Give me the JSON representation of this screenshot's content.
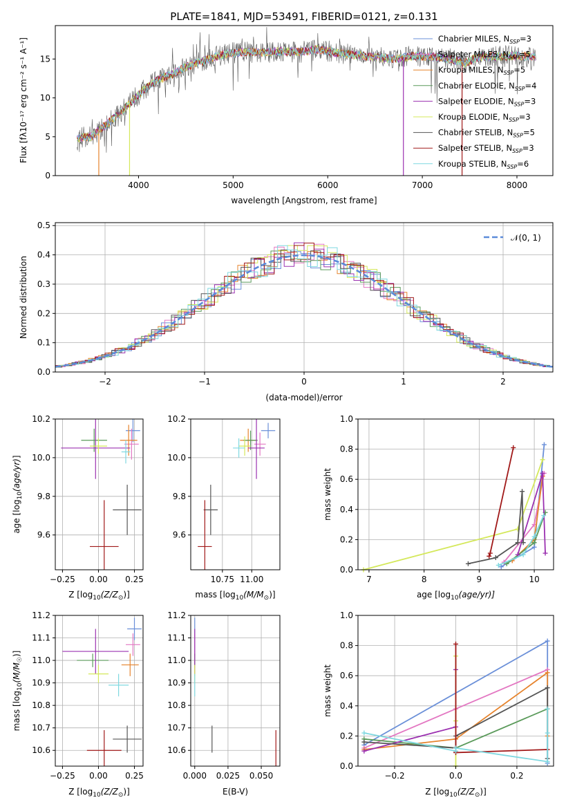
{
  "figure": {
    "title": "PLATE=1841, MJD=53491, FIBERID=0121, z=0.131"
  },
  "models": [
    {
      "name": "Chabrier MILES, N",
      "nssp": "=3",
      "color": "#6a8fd8"
    },
    {
      "name": "Salpeter MILES, N",
      "nssp": "=5",
      "color": "#e377c2"
    },
    {
      "name": "Kroupa MILES, N",
      "nssp": "=5",
      "color": "#e6832c"
    },
    {
      "name": "Chabrier ELODIE, N",
      "nssp": "=4",
      "color": "#5a9a5a"
    },
    {
      "name": "Salpeter ELODIE, N",
      "nssp": "=3",
      "color": "#9b30b0"
    },
    {
      "name": "Kroupa ELODIE, N",
      "nssp": "=3",
      "color": "#d4e85a"
    },
    {
      "name": "Chabrier STELIB, N",
      "nssp": "=5",
      "color": "#555555"
    },
    {
      "name": "Salpeter STELIB, N",
      "nssp": "=3",
      "color": "#a01818"
    },
    {
      "name": "Kroupa STELIB, N",
      "nssp": "=6",
      "color": "#7fd8e0"
    }
  ],
  "chart_data": [
    {
      "id": "spectrum",
      "type": "line",
      "xlabel": "wavelength [Angstrom, rest frame]",
      "ylabel": "Flux [fλ10⁻¹⁷ erg cm⁻² s⁻¹ A⁻¹]",
      "xlim": [
        3120,
        8380
      ],
      "ylim": [
        0,
        19.3
      ],
      "xticks": [
        4000,
        5000,
        6000,
        7000,
        8000
      ],
      "yticks": [
        0,
        5,
        10,
        15
      ],
      "grid": false,
      "legend": "top-right",
      "continuum": {
        "x": [
          3350,
          3500,
          3650,
          3800,
          3950,
          4050,
          4200,
          4350,
          4500,
          4700,
          4900,
          5100,
          5300,
          5500,
          5700,
          5900,
          6100,
          6300,
          6500,
          6700,
          6900,
          7100,
          7300,
          7450,
          7600,
          7800,
          8000,
          8200
        ],
        "y": [
          4.8,
          5.0,
          6.5,
          8.0,
          9.8,
          11.0,
          12.3,
          13.0,
          14.0,
          14.8,
          15.6,
          15.9,
          15.8,
          16.0,
          15.9,
          16.2,
          15.8,
          15.5,
          15.2,
          15.0,
          15.4,
          15.3,
          15.0,
          14.5,
          15.3,
          15.3,
          15.4,
          15.3
        ]
      }
    },
    {
      "id": "residuals",
      "type": "step",
      "xlabel": "(data-model)/error",
      "ylabel": "Normed distribution",
      "xlim": [
        -2.5,
        2.5
      ],
      "ylim": [
        0,
        0.51
      ],
      "xticks": [
        -2,
        -1,
        0,
        1,
        2
      ],
      "yticks": [
        0.0,
        0.1,
        0.2,
        0.3,
        0.4,
        0.5
      ],
      "grid": true,
      "legend": "top-right",
      "reference_label": "𝒩(0, 1)",
      "reference_color": "#5b8bd9"
    },
    {
      "id": "age-vs-Z",
      "type": "errorbar",
      "xlabel_plain": "Z [log",
      "xlabel_sub": "10",
      "xlabel_rest": "(Z/Z",
      "xlabel_end": ")]",
      "ylabel": "age  [log10(age/yr)]",
      "xlim": [
        -0.3,
        0.31
      ],
      "ylim": [
        9.42,
        10.2
      ],
      "xticks": [
        -0.25,
        0.0,
        0.25
      ],
      "xtick_labels": [
        "−0.25",
        "0.00",
        "0.25"
      ],
      "yticks": [
        9.6,
        9.8,
        10.0,
        10.2
      ],
      "ytick_labels": [
        "9.6",
        "9.8",
        "10.0",
        "10.2"
      ],
      "grid": true,
      "points": [
        {
          "model": 0,
          "x": 0.24,
          "xerr": 0.05,
          "y": 10.14,
          "yerr": 0.06
        },
        {
          "model": 1,
          "x": 0.23,
          "xerr": 0.05,
          "y": 10.07,
          "yerr": 0.08
        },
        {
          "model": 2,
          "x": 0.21,
          "xerr": 0.06,
          "y": 10.09,
          "yerr": 0.08
        },
        {
          "model": 3,
          "x": -0.03,
          "xerr": 0.09,
          "y": 10.09,
          "yerr": 0.06
        },
        {
          "model": 4,
          "x": -0.02,
          "xerr": 0.24,
          "y": 10.05,
          "yerr": 0.16
        },
        {
          "model": 5,
          "x": 0.0,
          "xerr": 0.06,
          "y": 10.06,
          "yerr": 0.04
        },
        {
          "model": 6,
          "x": 0.2,
          "xerr": 0.1,
          "y": 9.73,
          "yerr": 0.13
        },
        {
          "model": 7,
          "x": 0.04,
          "xerr": 0.1,
          "y": 9.54,
          "yerr": 0.24
        },
        {
          "model": 8,
          "x": 0.19,
          "xerr": 0.03,
          "y": 10.03,
          "yerr": 0.06
        }
      ]
    },
    {
      "id": "age-vs-mass",
      "type": "errorbar",
      "xlabel_plain": "mass [log",
      "xlabel_sub": "10",
      "xlabel_rest": "(M/M",
      "xlabel_end": ")]",
      "xlim": [
        10.48,
        11.24
      ],
      "ylim": [
        9.42,
        10.2
      ],
      "xticks": [
        10.75,
        11.0
      ],
      "xtick_labels": [
        "10.75",
        "11.00"
      ],
      "yticks": [
        9.6,
        9.8,
        10.0,
        10.2
      ],
      "ytick_labels": [
        "9.6",
        "9.8",
        "10.0",
        "10.2"
      ],
      "grid": true,
      "points": [
        {
          "model": 0,
          "x": 11.14,
          "xerr": 0.06,
          "y": 10.14,
          "yerr": 0.04
        },
        {
          "model": 1,
          "x": 11.07,
          "xerr": 0.05,
          "y": 10.07,
          "yerr": 0.06
        },
        {
          "model": 2,
          "x": 10.97,
          "xerr": 0.07,
          "y": 10.09,
          "yerr": 0.06
        },
        {
          "model": 3,
          "x": 10.99,
          "xerr": 0.06,
          "y": 10.09,
          "yerr": 0.05
        },
        {
          "model": 4,
          "x": 11.04,
          "xerr": 0.07,
          "y": 10.05,
          "yerr": 0.16
        },
        {
          "model": 5,
          "x": 10.94,
          "xerr": 0.05,
          "y": 10.06,
          "yerr": 0.05
        },
        {
          "model": 6,
          "x": 10.65,
          "xerr": 0.06,
          "y": 9.73,
          "yerr": 0.13
        },
        {
          "model": 7,
          "x": 10.6,
          "xerr": 0.06,
          "y": 9.54,
          "yerr": 0.24
        },
        {
          "model": 8,
          "x": 10.89,
          "xerr": 0.05,
          "y": 10.05,
          "yerr": 0.05
        }
      ]
    },
    {
      "id": "mass-weight-vs-age",
      "type": "line",
      "xlabel_plain": "age  [log",
      "xlabel_sub": "10",
      "xlabel_rest": "(age/yr)]",
      "ylabel": "mass weight",
      "xlim": [
        6.8,
        10.35
      ],
      "ylim": [
        0,
        1.0
      ],
      "xticks": [
        7,
        8,
        9,
        10
      ],
      "xtick_labels": [
        "7",
        "8",
        "9",
        "10"
      ],
      "yticks": [
        0.0,
        0.2,
        0.4,
        0.6,
        0.8,
        1.0
      ],
      "ytick_labels": [
        "0.0",
        "0.2",
        "0.4",
        "0.6",
        "0.8",
        "1.0"
      ],
      "grid": true,
      "series": [
        {
          "model": 0,
          "x": [
            9.4,
            10.0,
            10.18
          ],
          "y": [
            0.02,
            0.15,
            0.83
          ]
        },
        {
          "model": 1,
          "x": [
            9.45,
            10.0,
            10.18
          ],
          "y": [
            0.05,
            0.3,
            0.64
          ]
        },
        {
          "model": 2,
          "x": [
            9.6,
            10.0,
            10.15
          ],
          "y": [
            0.06,
            0.2,
            0.62
          ]
        },
        {
          "model": 3,
          "x": [
            9.5,
            10.0,
            10.2
          ],
          "y": [
            0.04,
            0.18,
            0.38
          ]
        },
        {
          "model": 4,
          "x": [
            9.7,
            10.15,
            10.2
          ],
          "y": [
            0.1,
            0.64,
            0.11
          ]
        },
        {
          "model": 5,
          "x": [
            6.9,
            9.7,
            10.15
          ],
          "y": [
            0.0,
            0.27,
            0.73
          ]
        },
        {
          "model": 6,
          "x": [
            8.8,
            9.3,
            9.7,
            9.78,
            9.8
          ],
          "y": [
            0.04,
            0.08,
            0.18,
            0.52,
            0.18
          ]
        },
        {
          "model": 7,
          "x": [
            9.18,
            9.2,
            9.62
          ],
          "y": [
            0.09,
            0.11,
            0.81
          ]
        },
        {
          "model": 8,
          "x": [
            9.35,
            9.8,
            10.0,
            10.17
          ],
          "y": [
            0.03,
            0.1,
            0.22,
            0.36
          ]
        }
      ]
    },
    {
      "id": "mass-vs-Z",
      "type": "errorbar",
      "xlabel_plain": "Z [log",
      "xlabel_sub": "10",
      "xlabel_rest": "(Z/Z",
      "xlabel_end": ")]",
      "ylabel": "mass [log10(M/M☉)]",
      "xlim": [
        -0.3,
        0.31
      ],
      "ylim": [
        10.53,
        11.2
      ],
      "xticks": [
        -0.25,
        0.0,
        0.25
      ],
      "xtick_labels": [
        "−0.25",
        "0.00",
        "0.25"
      ],
      "yticks": [
        10.6,
        10.7,
        10.8,
        10.9,
        11.0,
        11.1,
        11.2
      ],
      "ytick_labels": [
        "10.6",
        "10.7",
        "10.8",
        "10.9",
        "11.0",
        "11.1",
        "11.2"
      ],
      "grid": true,
      "points": [
        {
          "model": 0,
          "x": 0.25,
          "xerr": 0.05,
          "y": 11.14,
          "yerr": 0.05
        },
        {
          "model": 1,
          "x": 0.24,
          "xerr": 0.05,
          "y": 11.07,
          "yerr": 0.05
        },
        {
          "model": 2,
          "x": 0.22,
          "xerr": 0.06,
          "y": 10.98,
          "yerr": 0.05
        },
        {
          "model": 3,
          "x": -0.04,
          "xerr": 0.11,
          "y": 11.0,
          "yerr": 0.03
        },
        {
          "model": 4,
          "x": -0.02,
          "xerr": 0.23,
          "y": 11.04,
          "yerr": 0.1
        },
        {
          "model": 5,
          "x": 0.0,
          "xerr": 0.07,
          "y": 10.94,
          "yerr": 0.04
        },
        {
          "model": 6,
          "x": 0.2,
          "xerr": 0.1,
          "y": 10.65,
          "yerr": 0.06
        },
        {
          "model": 7,
          "x": 0.04,
          "xerr": 0.12,
          "y": 10.6,
          "yerr": 0.09
        },
        {
          "model": 8,
          "x": 0.14,
          "xerr": 0.07,
          "y": 10.89,
          "yerr": 0.05
        }
      ]
    },
    {
      "id": "mass-vs-ebv",
      "type": "errorbar",
      "xlabel": "E(B-V)",
      "xlim": [
        -0.003,
        0.064
      ],
      "ylim": [
        10.53,
        11.2
      ],
      "xticks": [
        0.0,
        0.025,
        0.05
      ],
      "xtick_labels": [
        "0.000",
        "0.025",
        "0.050"
      ],
      "yticks": [
        10.6,
        10.7,
        10.8,
        10.9,
        11.0,
        11.1,
        11.2
      ],
      "ytick_labels": [
        "10.6",
        "10.7",
        "10.8",
        "10.9",
        "11.0",
        "11.1",
        "11.2"
      ],
      "grid": true,
      "points": [
        {
          "model": 0,
          "x": 0.0,
          "xerr": 0,
          "y": 11.14,
          "yerr": 0.05
        },
        {
          "model": 1,
          "x": 0.0,
          "xerr": 0,
          "y": 11.07,
          "yerr": 0.05
        },
        {
          "model": 2,
          "x": 0.0,
          "xerr": 0,
          "y": 10.98,
          "yerr": 0.05
        },
        {
          "model": 3,
          "x": 0.0,
          "xerr": 0,
          "y": 11.0,
          "yerr": 0.03
        },
        {
          "model": 4,
          "x": 0.0,
          "xerr": 0,
          "y": 11.04,
          "yerr": 0.1
        },
        {
          "model": 5,
          "x": 0.0,
          "xerr": 0,
          "y": 10.94,
          "yerr": 0.04
        },
        {
          "model": 6,
          "x": 0.013,
          "xerr": 0,
          "y": 10.65,
          "yerr": 0.06
        },
        {
          "model": 7,
          "x": 0.061,
          "xerr": 0,
          "y": 10.6,
          "yerr": 0.09
        },
        {
          "model": 8,
          "x": 0.0,
          "xerr": 0,
          "y": 10.89,
          "yerr": 0.05
        }
      ]
    },
    {
      "id": "mass-weight-vs-Z",
      "type": "line",
      "xlabel_plain": "Z [log",
      "xlabel_sub": "10",
      "xlabel_rest": "(Z/Z",
      "xlabel_end": ")]",
      "ylabel": "mass weight",
      "xlim": [
        -0.32,
        0.32
      ],
      "ylim": [
        0,
        1.0
      ],
      "xticks": [
        -0.2,
        0.0,
        0.2
      ],
      "xtick_labels": [
        "−0.2",
        "0.0",
        "0.2"
      ],
      "yticks": [
        0.0,
        0.2,
        0.4,
        0.6,
        0.8,
        1.0
      ],
      "ytick_labels": [
        "0.0",
        "0.2",
        "0.4",
        "0.6",
        "0.8",
        "1.0"
      ],
      "grid": true,
      "series": [
        {
          "model": 0,
          "x": [
            -0.3,
            0.3,
            0.3
          ],
          "y": [
            0.14,
            0.83,
            0.02
          ]
        },
        {
          "model": 1,
          "x": [
            -0.3,
            0.0,
            0.3
          ],
          "y": [
            0.12,
            0.38,
            0.64
          ]
        },
        {
          "model": 2,
          "x": [
            -0.3,
            0.0,
            0.3,
            0.3
          ],
          "y": [
            0.11,
            0.18,
            0.62,
            0.2
          ]
        },
        {
          "model": 3,
          "x": [
            -0.3,
            0.0,
            0.3
          ],
          "y": [
            0.18,
            0.12,
            0.38
          ]
        },
        {
          "model": 4,
          "x": [
            -0.3,
            0.0,
            0.0
          ],
          "y": [
            0.1,
            0.26,
            0.64
          ]
        },
        {
          "model": 5,
          "x": [
            0.0,
            0.0,
            0.0
          ],
          "y": [
            0.73,
            0.3,
            0.0
          ]
        },
        {
          "model": 6,
          "x": [
            -0.3,
            0.0,
            0.0,
            0.3,
            0.3
          ],
          "y": [
            0.16,
            0.12,
            0.2,
            0.52,
            0.05
          ]
        },
        {
          "model": 7,
          "x": [
            0.0,
            0.0,
            0.0,
            0.3
          ],
          "y": [
            0.81,
            0.1,
            0.09,
            0.11
          ]
        },
        {
          "model": 8,
          "x": [
            -0.3,
            0.0,
            0.0,
            0.3,
            0.3,
            0.3
          ],
          "y": [
            0.22,
            0.1,
            0.12,
            0.03,
            0.22,
            0.38
          ]
        }
      ]
    }
  ]
}
